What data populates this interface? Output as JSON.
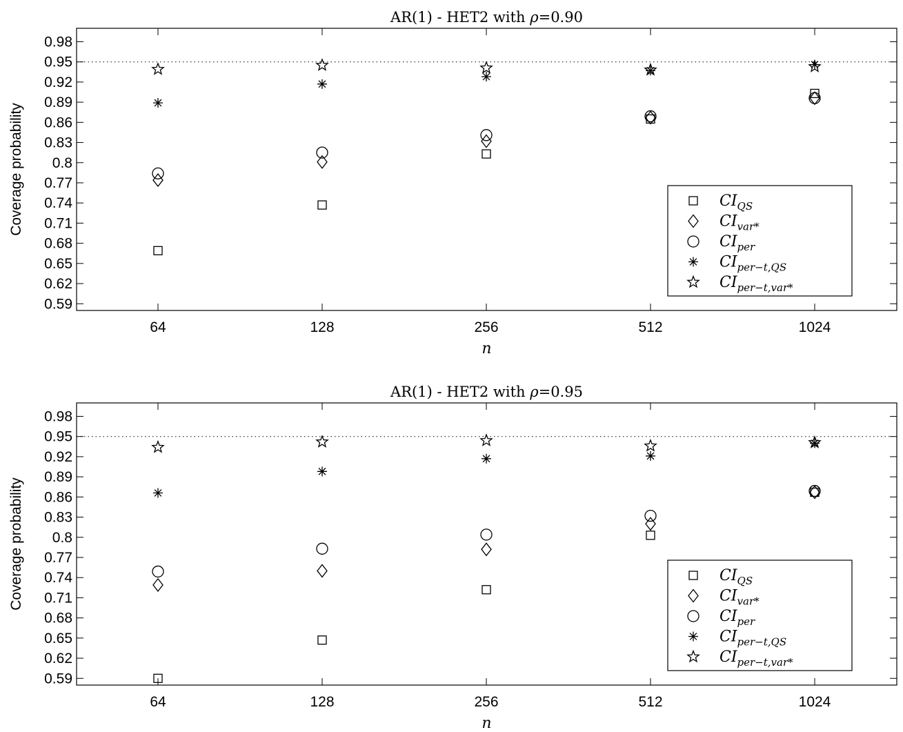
{
  "chart_data": [
    {
      "type": "scatter",
      "title": "AR(1) - HET2 with ρ=0.90",
      "title_plain": "AR(1) - HET2 with ",
      "title_rho": "ρ",
      "title_value": "=0.90",
      "xlabel": "n",
      "ylabel": "Coverage probability",
      "categories": [
        "64",
        "128",
        "256",
        "512",
        "1024"
      ],
      "yticks": [
        "0.59",
        "0.62",
        "0.65",
        "0.68",
        "0.71",
        "0.74",
        "0.77",
        "0.8",
        "0.83",
        "0.86",
        "0.89",
        "0.92",
        "0.95",
        "0.98"
      ],
      "ylim": [
        0.58,
        1.0
      ],
      "reference_line": 0.95,
      "legend_position": "bottom-right",
      "series": [
        {
          "name": "CI_QS",
          "main": "CI",
          "sub": "QS",
          "marker": "square",
          "values": [
            0.669,
            0.737,
            0.813,
            0.865,
            0.903
          ]
        },
        {
          "name": "CI_var*",
          "main": "CI",
          "sub": "var*",
          "marker": "diamond",
          "values": [
            0.774,
            0.801,
            0.832,
            0.867,
            0.896
          ]
        },
        {
          "name": "CI_per",
          "main": "CI",
          "sub": "per",
          "marker": "circle",
          "values": [
            0.784,
            0.815,
            0.841,
            0.869,
            0.896
          ]
        },
        {
          "name": "CI_per−t,QS",
          "main": "CI",
          "sub": "per−t,QS",
          "marker": "asterisk",
          "values": [
            0.889,
            0.917,
            0.928,
            0.937,
            0.946
          ]
        },
        {
          "name": "CI_per−t,var*",
          "main": "CI",
          "sub": "per−t,var*",
          "marker": "star",
          "values": [
            0.939,
            0.945,
            0.941,
            0.938,
            0.943
          ]
        }
      ]
    },
    {
      "type": "scatter",
      "title": "AR(1) - HET2 with ρ=0.95",
      "title_plain": "AR(1) - HET2 with ",
      "title_rho": "ρ",
      "title_value": "=0.95",
      "xlabel": "n",
      "ylabel": "Coverage probability",
      "categories": [
        "64",
        "128",
        "256",
        "512",
        "1024"
      ],
      "yticks": [
        "0.59",
        "0.62",
        "0.65",
        "0.68",
        "0.71",
        "0.74",
        "0.77",
        "0.8",
        "0.83",
        "0.86",
        "0.89",
        "0.92",
        "0.95",
        "0.98"
      ],
      "ylim": [
        0.58,
        1.0
      ],
      "reference_line": 0.95,
      "legend_position": "bottom-right",
      "series": [
        {
          "name": "CI_QS",
          "main": "CI",
          "sub": "QS",
          "marker": "square",
          "values": [
            0.59,
            0.647,
            0.722,
            0.803,
            0.867
          ]
        },
        {
          "name": "CI_var*",
          "main": "CI",
          "sub": "var*",
          "marker": "diamond",
          "values": [
            0.729,
            0.75,
            0.782,
            0.82,
            0.867
          ]
        },
        {
          "name": "CI_per",
          "main": "CI",
          "sub": "per",
          "marker": "circle",
          "values": [
            0.749,
            0.783,
            0.804,
            0.832,
            0.869
          ]
        },
        {
          "name": "CI_per−t,QS",
          "main": "CI",
          "sub": "per−t,QS",
          "marker": "asterisk",
          "values": [
            0.866,
            0.898,
            0.917,
            0.921,
            0.94
          ]
        },
        {
          "name": "CI_per−t,var*",
          "main": "CI",
          "sub": "per−t,var*",
          "marker": "star",
          "values": [
            0.934,
            0.942,
            0.944,
            0.936,
            0.941
          ]
        }
      ]
    }
  ]
}
